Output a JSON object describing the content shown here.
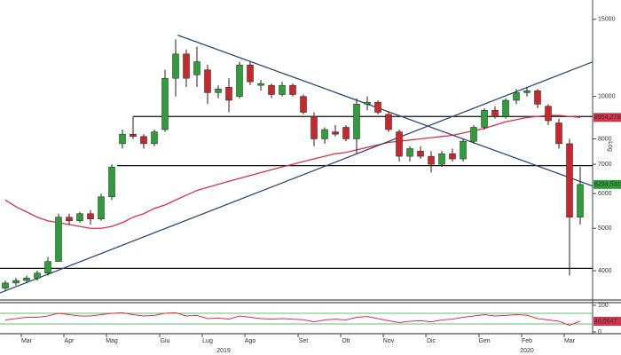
{
  "chart_data": {
    "type": "candlestick",
    "y_axis_label": "Log",
    "log_scale": true,
    "ylim": [
      3430,
      16600
    ],
    "yticks": [
      4000,
      5000,
      6000,
      7000,
      8000,
      10000,
      15000
    ],
    "categories": [
      null,
      null,
      "Mar",
      null,
      null,
      null,
      "Apr",
      null,
      null,
      null,
      "Mag",
      null,
      null,
      null,
      null,
      "Giu",
      null,
      null,
      null,
      "Lug",
      null,
      null,
      null,
      "Ago",
      null,
      null,
      null,
      null,
      "Set",
      null,
      null,
      null,
      "Ott",
      null,
      null,
      null,
      "Nov",
      null,
      null,
      null,
      "Dic",
      null,
      null,
      null,
      null,
      "Gen",
      null,
      null,
      null,
      "Feb",
      null,
      null,
      null,
      "Mar",
      null
    ],
    "year_labels": [
      {
        "at": 20.5,
        "label": "2019"
      },
      {
        "at": 49,
        "label": "2020"
      }
    ],
    "up_color": "#2e9e3a",
    "down_color": "#c8282a",
    "ohlc": [
      [
        3650,
        3800,
        3600,
        3750
      ],
      [
        3750,
        3850,
        3700,
        3800
      ],
      [
        3800,
        3900,
        3750,
        3850
      ],
      [
        3850,
        4000,
        3800,
        3950
      ],
      [
        3950,
        4300,
        3900,
        4200
      ],
      [
        4200,
        5400,
        4200,
        5300
      ],
      [
        5300,
        5400,
        5100,
        5200
      ],
      [
        5200,
        5450,
        5150,
        5400
      ],
      [
        5400,
        5500,
        5100,
        5250
      ],
      [
        5250,
        6000,
        5200,
        5900
      ],
      [
        5900,
        7000,
        5800,
        6900
      ],
      [
        7800,
        8400,
        7600,
        8200
      ],
      [
        8200,
        9000,
        8000,
        8100
      ],
      [
        8100,
        8200,
        7600,
        7800
      ],
      [
        7800,
        8400,
        7700,
        8300
      ],
      [
        8400,
        11500,
        8300,
        11000
      ],
      [
        11000,
        13500,
        10000,
        12500
      ],
      [
        12500,
        12800,
        10500,
        11000
      ],
      [
        11200,
        13000,
        10500,
        12000
      ],
      [
        11500,
        11800,
        9600,
        10200
      ],
      [
        10200,
        10600,
        9900,
        10400
      ],
      [
        10500,
        11000,
        9200,
        9800
      ],
      [
        10000,
        12000,
        9900,
        11800
      ],
      [
        11800,
        12000,
        10600,
        10800
      ],
      [
        10600,
        10900,
        10300,
        10700
      ],
      [
        10600,
        10700,
        9900,
        10100
      ],
      [
        10100,
        10800,
        10000,
        10600
      ],
      [
        10600,
        10700,
        10000,
        10100
      ],
      [
        10000,
        10100,
        9100,
        9200
      ],
      [
        9000,
        9200,
        7700,
        8000
      ],
      [
        8000,
        8500,
        7800,
        8400
      ],
      [
        8300,
        8600,
        8100,
        8200
      ],
      [
        8500,
        8600,
        7900,
        8000
      ],
      [
        8000,
        9900,
        7400,
        9600
      ],
      [
        9600,
        10000,
        9300,
        9700
      ],
      [
        9700,
        9800,
        9100,
        9200
      ],
      [
        9100,
        9200,
        8300,
        8400
      ],
      [
        8300,
        8400,
        7100,
        7300
      ],
      [
        7300,
        7700,
        7100,
        7600
      ],
      [
        7500,
        7700,
        7200,
        7300
      ],
      [
        7300,
        7500,
        6700,
        7000
      ],
      [
        7000,
        7500,
        6900,
        7400
      ],
      [
        7400,
        7600,
        7100,
        7200
      ],
      [
        7200,
        8000,
        7100,
        7900
      ],
      [
        7900,
        8600,
        7800,
        8500
      ],
      [
        8500,
        9400,
        8400,
        9300
      ],
      [
        9300,
        9500,
        8900,
        9000
      ],
      [
        9000,
        9900,
        8900,
        9800
      ],
      [
        9800,
        10400,
        9600,
        10200
      ],
      [
        10200,
        10500,
        10000,
        10300
      ],
      [
        10300,
        10400,
        9400,
        9600
      ],
      [
        9500,
        9600,
        8600,
        8800
      ],
      [
        8700,
        8900,
        7600,
        7800
      ],
      [
        7800,
        8000,
        3900,
        5300
      ],
      [
        5300,
        6900,
        5100,
        6294.5313
      ]
    ],
    "close_label": "6294,5313",
    "close_color": "#2e9e3a",
    "ma": {
      "color": "#d6334a",
      "values": [
        5800,
        5600,
        5450,
        5300,
        5200,
        5150,
        5100,
        5050,
        5000,
        5000,
        5050,
        5150,
        5300,
        5400,
        5550,
        5650,
        5800,
        5950,
        6100,
        6200,
        6300,
        6400,
        6500,
        6600,
        6700,
        6800,
        6900,
        7000,
        7100,
        7200,
        7300,
        7400,
        7450,
        7550,
        7650,
        7750,
        7850,
        7900,
        7950,
        8000,
        8050,
        8100,
        8150,
        8250,
        8350,
        8450,
        8600,
        8750,
        8850,
        8950,
        9000,
        9050,
        9050,
        9000,
        8954.2783
      ],
      "last_label": "8954,2783"
    },
    "levels": [
      {
        "value": 9000,
        "from": 12
      },
      {
        "value": 6950,
        "from": 10.5
      },
      {
        "value": 4050,
        "from": -0.5
      }
    ],
    "trend_lines": [
      {
        "start": [
          -0.5,
          3560
        ],
        "end": [
          55.2,
          12000
        ]
      },
      {
        "start": [
          16.2,
          13800
        ],
        "end": [
          55.2,
          6240
        ]
      }
    ],
    "trend_color": "#2c4a7a",
    "rsi": {
      "color": "#d6334a",
      "ylim": [
        0,
        100
      ],
      "yticks": [
        0,
        100
      ],
      "levels": [
        30,
        70
      ],
      "level_color": "#3aa04a",
      "values": [
        45,
        50,
        55,
        55,
        60,
        70,
        65,
        60,
        60,
        65,
        70,
        72,
        65,
        60,
        62,
        70,
        72,
        60,
        62,
        50,
        52,
        48,
        60,
        55,
        50,
        48,
        50,
        48,
        46,
        38,
        45,
        48,
        45,
        55,
        58,
        50,
        42,
        35,
        40,
        42,
        38,
        45,
        48,
        55,
        60,
        65,
        60,
        62,
        65,
        63,
        50,
        45,
        40,
        25,
        40.0647
      ],
      "last_label": "40,0647"
    }
  }
}
